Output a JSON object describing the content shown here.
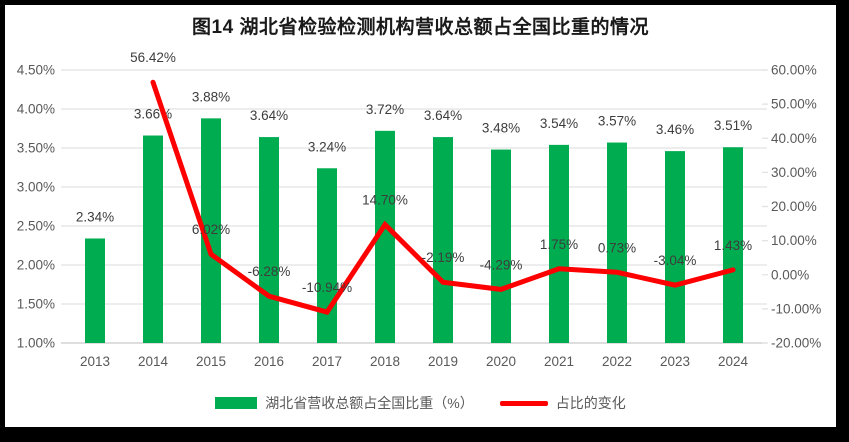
{
  "chart_data": {
    "type": "bar+line",
    "title": "图14 湖北省检验检测机构营收总额占全国比重的情况",
    "categories": [
      "2013",
      "2014",
      "2015",
      "2016",
      "2017",
      "2018",
      "2019",
      "2020",
      "2021",
      "2022",
      "2023",
      "2024"
    ],
    "series": [
      {
        "name": "湖北省营收总额占全国比重（%）",
        "type": "bar",
        "axis": "left",
        "color": "#00AC50",
        "values": [
          2.34,
          3.66,
          3.88,
          3.64,
          3.24,
          3.72,
          3.64,
          3.48,
          3.54,
          3.57,
          3.46,
          3.51
        ],
        "labels": [
          "2.34%",
          "3.66%",
          "3.88%",
          "3.64%",
          "3.24%",
          "3.72%",
          "3.64%",
          "3.48%",
          "3.54%",
          "3.57%",
          "3.46%",
          "3.51%"
        ]
      },
      {
        "name": "占比的变化",
        "type": "line",
        "axis": "right",
        "color": "#FE0000",
        "values": [
          null,
          56.42,
          6.02,
          -6.28,
          -10.94,
          14.7,
          -2.19,
          -4.29,
          1.75,
          0.73,
          -3.04,
          1.43
        ],
        "labels": [
          null,
          "56.42%",
          "6.02%",
          "-6.28%",
          "-10.94%",
          "14.70%",
          "-2.19%",
          "-4.29%",
          "1.75%",
          "0.73%",
          "-3.04%",
          "1.43%"
        ]
      }
    ],
    "left_axis": {
      "min": 1.0,
      "max": 4.5,
      "step": 0.5,
      "tick_labels": [
        "4.50%",
        "4.00%",
        "3.50%",
        "3.00%",
        "2.50%",
        "2.00%",
        "1.50%",
        "1.00%"
      ]
    },
    "right_axis": {
      "min": -20,
      "max": 60,
      "step": 10,
      "tick_labels": [
        "60.00%",
        "50.00%",
        "40.00%",
        "30.00%",
        "20.00%",
        "10.00%",
        "0.00%",
        "-10.00%",
        "-20.00%"
      ]
    },
    "grid": true,
    "legend_position": "bottom",
    "colors": {
      "gridline": "#E2E2E2",
      "axis_line": "#C9C9C9",
      "tick_text": "#595959",
      "data_label_text": "#3d3d3d",
      "frame_border": "#000000",
      "background": "#FFFFFF"
    }
  }
}
